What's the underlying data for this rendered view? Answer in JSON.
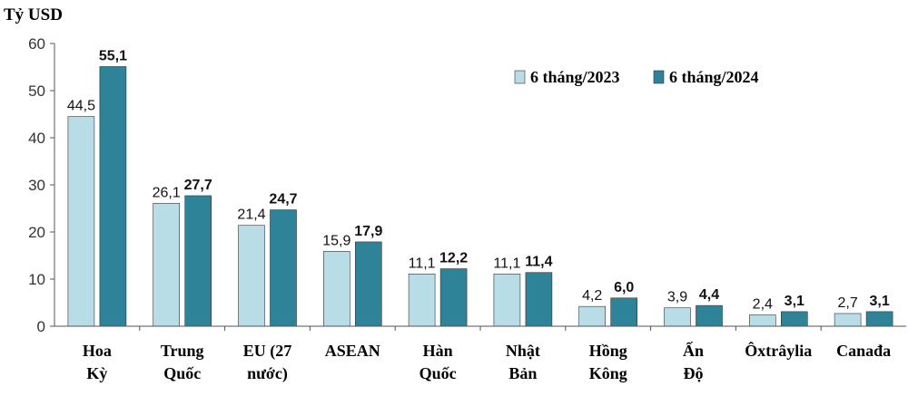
{
  "chart_data": {
    "type": "bar",
    "unit_label": "Tỷ USD",
    "ylim": [
      0,
      60
    ],
    "y_ticks": [
      0,
      10,
      20,
      30,
      40,
      50,
      60
    ],
    "grid": false,
    "legend_position": "top-right",
    "categories": [
      [
        "Hoa",
        "Kỳ"
      ],
      [
        "Trung",
        "Quốc"
      ],
      [
        "EU (27",
        "nước)"
      ],
      [
        "ASEAN"
      ],
      [
        "Hàn",
        "Quốc"
      ],
      [
        "Nhật",
        "Bản"
      ],
      [
        "Hồng",
        "Kông"
      ],
      [
        "Ấn",
        "Độ"
      ],
      [
        "Ôxtrâylia"
      ],
      [
        "Canađa"
      ]
    ],
    "series": [
      {
        "name": "6 tháng/2023",
        "color": "#b8dde6",
        "values": [
          44.5,
          26.1,
          21.4,
          15.9,
          11.1,
          11.1,
          4.2,
          3.9,
          2.4,
          2.7
        ],
        "labels": [
          "44,5",
          "26,1",
          "21,4",
          "15,9",
          "11,1",
          "11,1",
          "4,2",
          "3,9",
          "2,4",
          "2,7"
        ]
      },
      {
        "name": "6 tháng/2024",
        "color": "#2f8399",
        "values": [
          55.1,
          27.7,
          24.7,
          17.9,
          12.2,
          11.4,
          6.0,
          4.4,
          3.1,
          3.1
        ],
        "labels": [
          "55,1",
          "27,7",
          "24,7",
          "17,9",
          "12,2",
          "11,4",
          "6,0",
          "4,4",
          "3,1",
          "3,1"
        ]
      }
    ]
  }
}
